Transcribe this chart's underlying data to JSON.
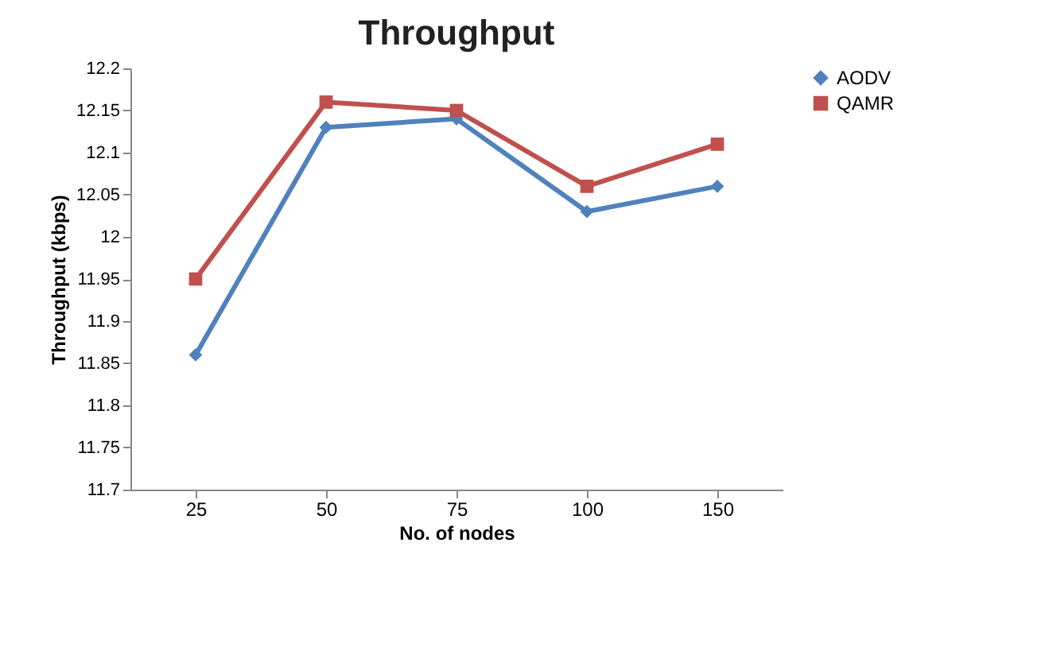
{
  "chart_data": {
    "type": "line",
    "title": "Throughput",
    "xlabel": "No. of nodes",
    "ylabel": "Throughput (kbps)",
    "categories": [
      "25",
      "50",
      "75",
      "100",
      "150"
    ],
    "series": [
      {
        "name": "AODV",
        "color": "#4f81bd",
        "marker": "diamond",
        "values": [
          11.86,
          12.13,
          12.14,
          12.03,
          12.06
        ]
      },
      {
        "name": "QAMR",
        "color": "#c0504d",
        "marker": "square",
        "values": [
          11.95,
          12.16,
          12.15,
          12.06,
          12.11
        ]
      }
    ],
    "ylim": [
      11.7,
      12.2
    ],
    "yticks": [
      11.7,
      11.75,
      11.8,
      11.85,
      11.9,
      11.95,
      12,
      12.05,
      12.1,
      12.15,
      12.2
    ],
    "grid": false,
    "legend": "right"
  }
}
